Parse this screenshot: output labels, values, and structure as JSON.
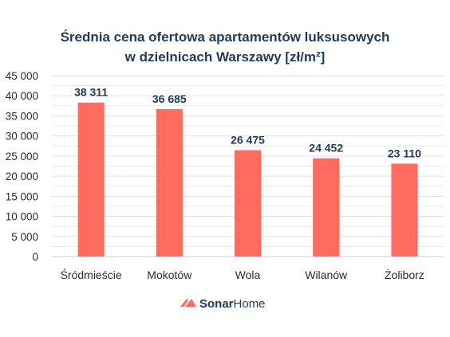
{
  "chart_data": {
    "type": "bar",
    "title_lines": [
      "Średnia cena ofertowa apartamentów luksusowych",
      "w dzielnicach Warszawy [zł/m²]"
    ],
    "categories": [
      "Śródmieście",
      "Mokotów",
      "Wola",
      "Wilanów",
      "Żoliborz"
    ],
    "values": [
      38311,
      36685,
      26475,
      24452,
      23110
    ],
    "value_labels": [
      "38 311",
      "36 685",
      "26 475",
      "24 452",
      "23 110"
    ],
    "ylim": [
      0,
      45000
    ],
    "yticks": [
      0,
      5000,
      10000,
      15000,
      20000,
      25000,
      30000,
      35000,
      40000,
      45000
    ],
    "ytick_labels": [
      "0",
      "5 000",
      "10 000",
      "15 000",
      "20 000",
      "25 000",
      "30 000",
      "35 000",
      "40 000",
      "45 000"
    ],
    "grid": true,
    "bar_color": "#ff6b5f",
    "grid_color": "#dde2ea",
    "title_color": "#1f3a5c"
  },
  "brand": {
    "name_strong": "Sonar",
    "name_rest": "Home",
    "logo_color": "#ff6b5f"
  }
}
